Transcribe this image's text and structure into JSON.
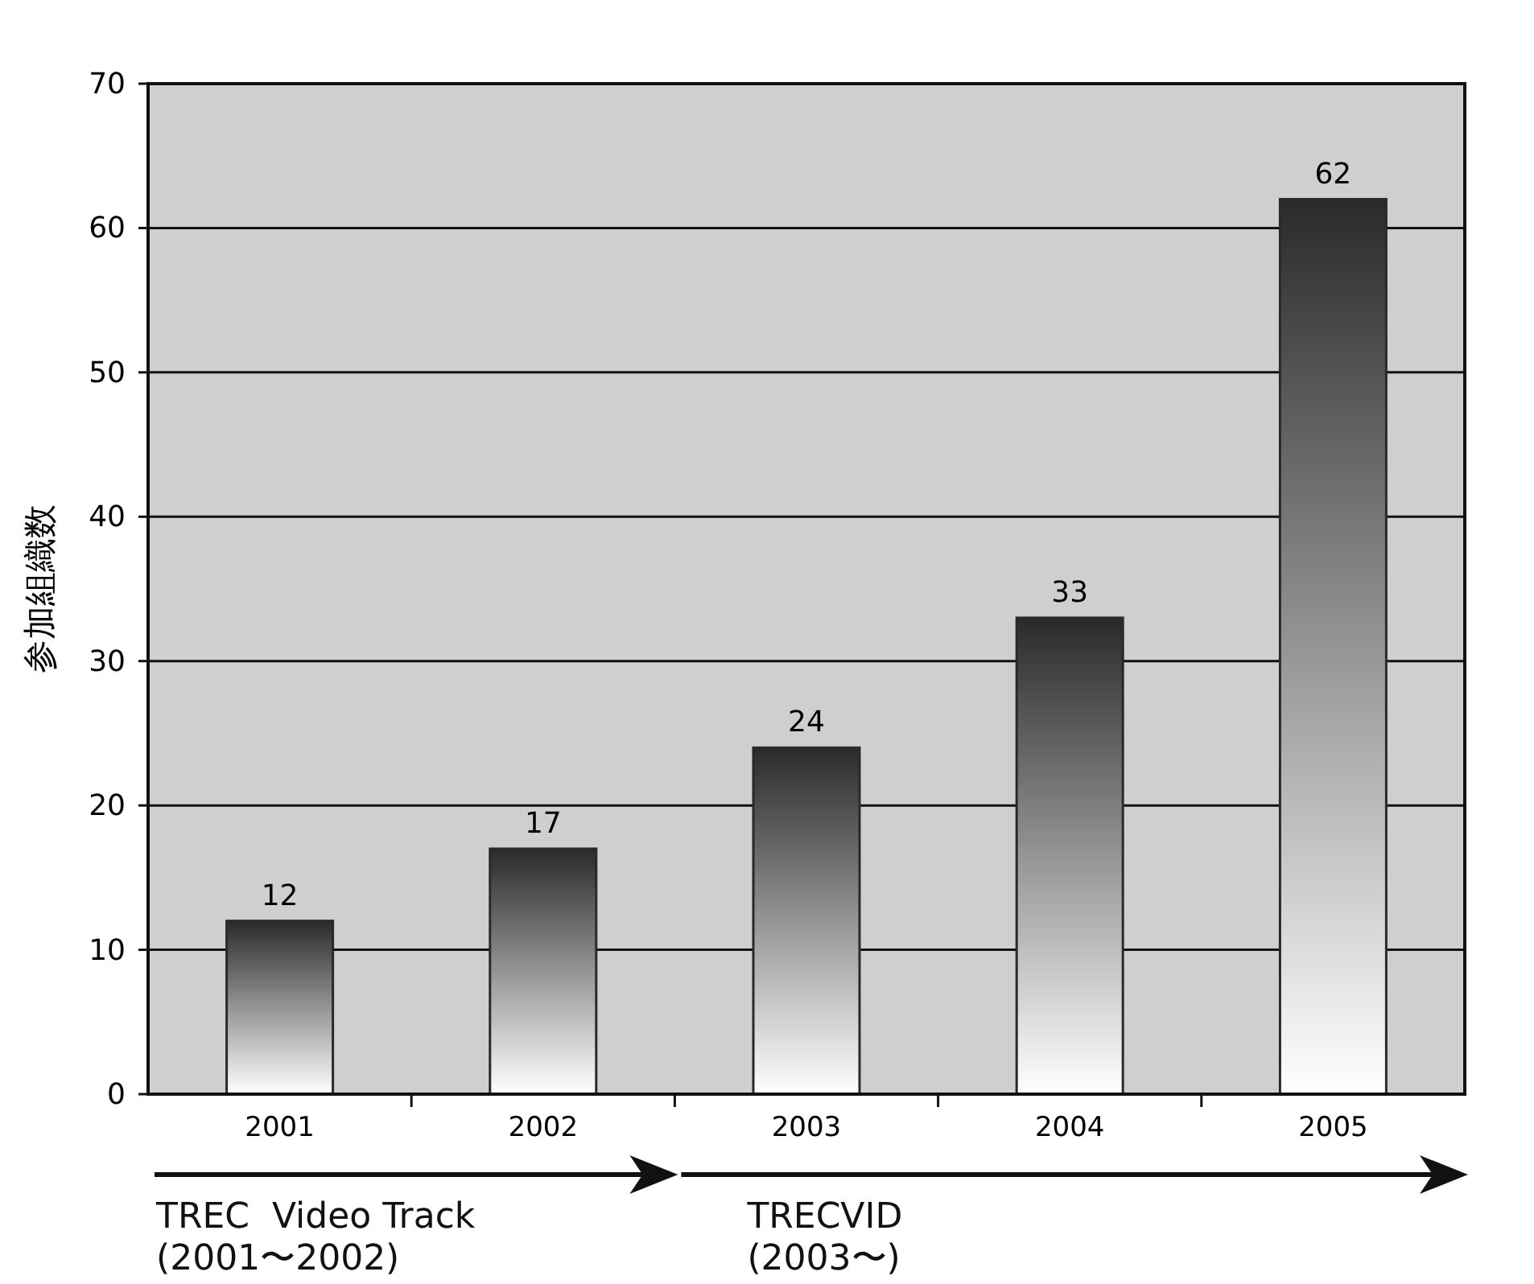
{
  "chart_data": {
    "type": "bar",
    "ylabel": "参加組織数",
    "categories": [
      "2001",
      "2002",
      "2003",
      "2004",
      "2005"
    ],
    "values": [
      12,
      17,
      24,
      33,
      62
    ],
    "color": "#2a2a2a",
    "ylim": [
      0,
      70
    ],
    "yticks": [
      0,
      10,
      20,
      30,
      40,
      50,
      60,
      70
    ],
    "grid": "y",
    "data_labels": true,
    "annotations": [
      "TREC  Video Track (2001〜2002)",
      "TRECVID (2003〜)"
    ]
  }
}
